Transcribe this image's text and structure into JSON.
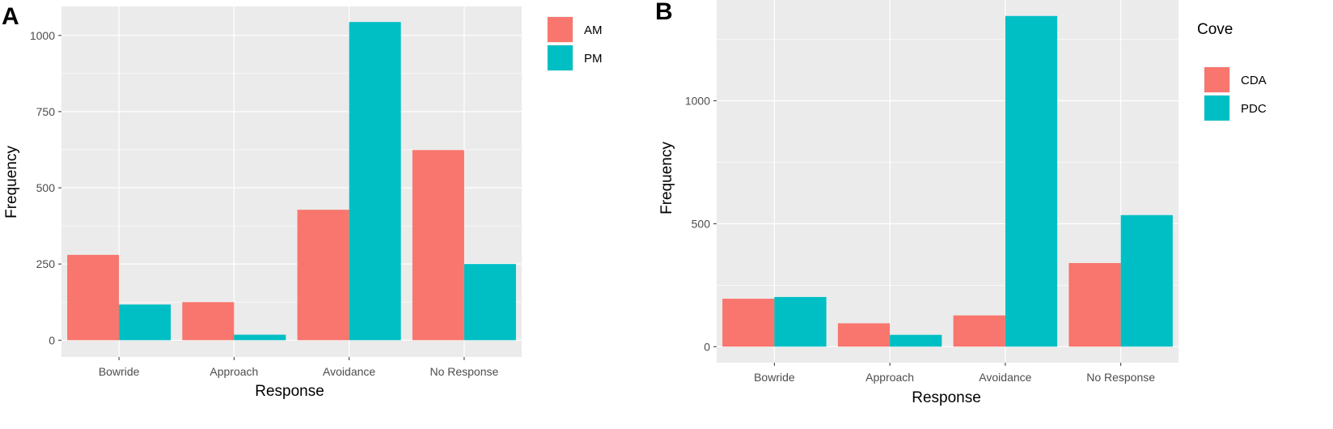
{
  "chart_data": [
    {
      "panel_label": "A",
      "type": "bar",
      "xlabel": "Response",
      "ylabel": "Frequency",
      "categories": [
        "Bowride",
        "Approach",
        "Avoidance",
        "No Response"
      ],
      "series": [
        {
          "name": "AM",
          "values": [
            280,
            125,
            428,
            624
          ]
        },
        {
          "name": "PM",
          "values": [
            117,
            18,
            1044,
            250
          ]
        }
      ],
      "colors": [
        "#F8766D",
        "#00BFC4"
      ],
      "legend_title": "",
      "ylim": [
        -55,
        1095
      ],
      "yticks": [
        0,
        250,
        500,
        750,
        1000
      ],
      "ytick_labels": [
        "0",
        "250",
        "500",
        "750",
        "1000"
      ]
    },
    {
      "panel_label": "B",
      "type": "bar",
      "xlabel": "Response",
      "ylabel": "Frequency",
      "categories": [
        "Bowride",
        "Approach",
        "Avoidance",
        "No Response"
      ],
      "series": [
        {
          "name": "CDA",
          "values": [
            195,
            95,
            127,
            340
          ]
        },
        {
          "name": "PDC",
          "values": [
            202,
            48,
            1345,
            535
          ]
        }
      ],
      "colors": [
        "#F8766D",
        "#00BFC4"
      ],
      "legend_title": "Cove",
      "ylim": [
        -65,
        1410
      ],
      "yticks": [
        0,
        500,
        1000
      ],
      "ytick_labels": [
        "0",
        "500",
        "1000"
      ]
    }
  ]
}
